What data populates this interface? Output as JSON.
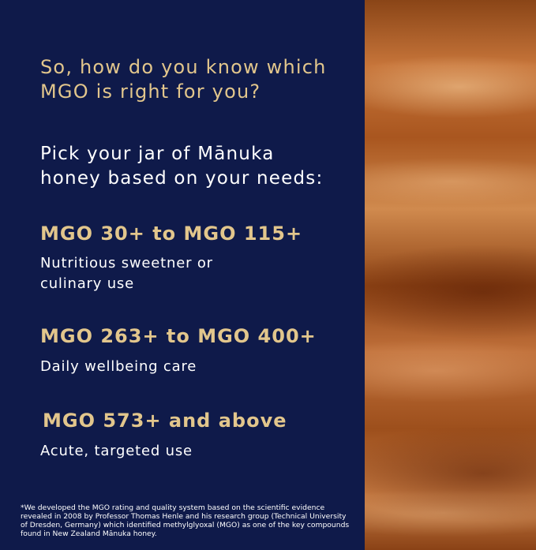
{
  "question": "So, how do you know which MGO is right for you?",
  "prompt": "Pick your jar of Mānuka honey based on your needs:",
  "tiers": [
    {
      "range": "MGO 30+ to MGO 115+",
      "use": "Nutritious sweetner or culinary use"
    },
    {
      "range": "MGO 263+ to MGO 400+",
      "use": "Daily wellbeing care"
    },
    {
      "range": "MGO 573+ and above",
      "use": "Acute, targeted use"
    }
  ],
  "footnote": "*We developed the MGO rating and quality system based on the scientific evidence revealed in 2008 by Professor Thomas Henle and his research group (Technical University of Dresden, Germany) which identified methylglyoxal (MGO) as one of the key compounds found in New Zealand Mānuka honey.",
  "colors": {
    "background": "#0f1a4a",
    "accent": "#e2c68c"
  }
}
